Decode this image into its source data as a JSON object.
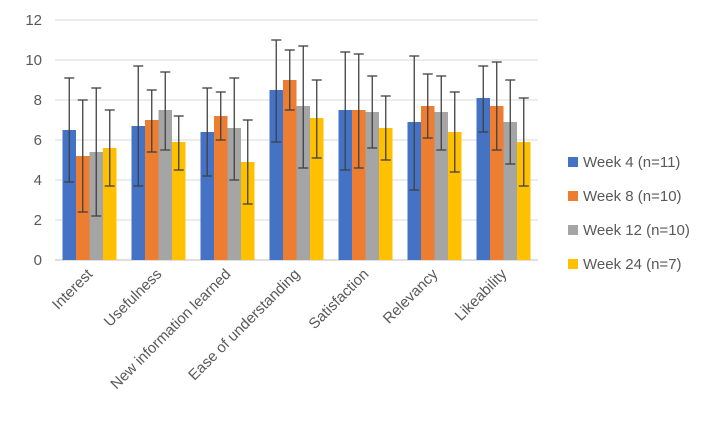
{
  "chart_data": {
    "type": "bar",
    "title": "",
    "xlabel": "",
    "ylabel": "",
    "ylim": [
      0,
      12
    ],
    "yticks": [
      0,
      2,
      4,
      6,
      8,
      10,
      12
    ],
    "grid": true,
    "legend_position": "right",
    "categories": [
      "Interest",
      "Usefulness",
      "New information learned",
      "Ease of understanding",
      "Satisfaction",
      "Relevancy",
      "Likeability"
    ],
    "series": [
      {
        "name": "Week 4 (n=11)",
        "color": "#4472C4",
        "values": [
          6.5,
          6.7,
          6.4,
          8.5,
          7.5,
          6.9,
          8.1
        ],
        "err_low": [
          3.9,
          3.7,
          4.2,
          5.9,
          4.5,
          3.5,
          6.4
        ],
        "err_high": [
          9.1,
          9.7,
          8.6,
          11.0,
          10.4,
          10.2,
          9.7
        ]
      },
      {
        "name": "Week 8 (n=10)",
        "color": "#ED7D31",
        "values": [
          5.2,
          7.0,
          7.2,
          9.0,
          7.5,
          7.7,
          7.7
        ],
        "err_low": [
          2.4,
          5.4,
          6.0,
          7.5,
          4.6,
          6.1,
          5.5
        ],
        "err_high": [
          8.0,
          8.5,
          8.4,
          10.5,
          10.3,
          9.3,
          9.9
        ]
      },
      {
        "name": "Week 12 (n=10)",
        "color": "#A5A5A5",
        "values": [
          5.4,
          7.5,
          6.6,
          7.7,
          7.4,
          7.4,
          6.9
        ],
        "err_low": [
          2.2,
          5.5,
          4.0,
          4.6,
          5.6,
          5.5,
          4.8
        ],
        "err_high": [
          8.6,
          9.4,
          9.1,
          10.7,
          9.2,
          9.2,
          9.0
        ]
      },
      {
        "name": "Week 24 (n=7)",
        "color": "#FFC000",
        "values": [
          5.6,
          5.9,
          4.9,
          7.1,
          6.6,
          6.4,
          5.9
        ],
        "err_low": [
          3.7,
          4.5,
          2.8,
          5.1,
          5.0,
          4.4,
          3.7
        ],
        "err_high": [
          7.5,
          7.2,
          7.0,
          9.0,
          8.2,
          8.4,
          8.1
        ]
      }
    ]
  }
}
